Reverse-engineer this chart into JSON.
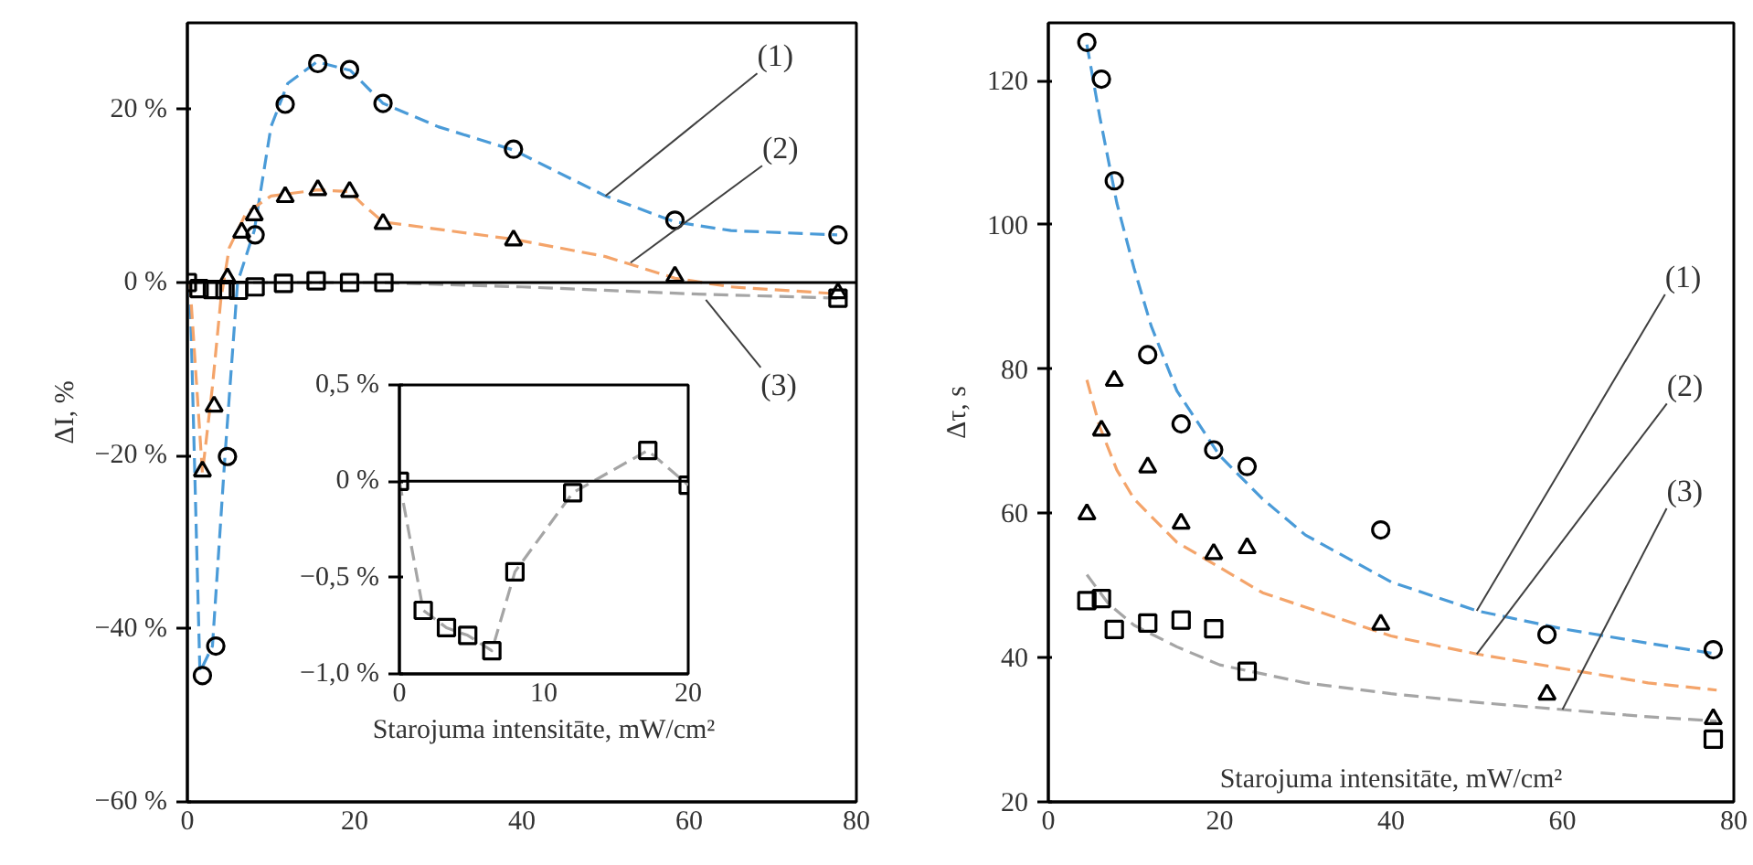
{
  "chart_data": [
    {
      "type": "scatter",
      "ylabel": "ΔI, %",
      "xlim": [
        0,
        80
      ],
      "xticks": [
        0,
        20,
        40,
        60,
        80
      ],
      "ylim": [
        -60,
        30
      ],
      "yticks": [
        {
          "value": -60,
          "label": "−60 %"
        },
        {
          "value": -40,
          "label": "−40 %"
        },
        {
          "value": -20,
          "label": "−20 %"
        },
        {
          "value": 0,
          "label": "0 %"
        },
        {
          "value": 20,
          "label": "20 %"
        }
      ],
      "grid": false,
      "ref_lines": [
        {
          "axis": "y",
          "value": 0,
          "color": "#000000"
        }
      ],
      "series": [
        {
          "type": "line",
          "color": "#4a9bd8",
          "line_style": "dashed",
          "x": [
            0.3,
            1.5,
            3,
            4.5,
            6,
            8,
            10,
            12,
            15.5,
            19.5,
            23.4,
            30,
            39,
            50,
            58.3,
            65,
            77.7
          ],
          "values": [
            0,
            -45,
            -42,
            -20,
            0,
            6,
            18,
            23,
            25.5,
            24.5,
            20.7,
            18,
            15.3,
            10,
            7,
            6,
            5.5
          ]
        },
        {
          "type": "line",
          "color": "#f4a46a",
          "line_style": "dashed",
          "x": [
            0.3,
            1.8,
            3,
            4,
            5,
            7,
            10,
            15.6,
            19.4,
            21,
            23.4,
            39,
            50,
            58.3,
            65,
            77.7
          ],
          "values": [
            0,
            -22,
            -12,
            -2,
            4,
            8,
            10,
            10.7,
            10.5,
            9,
            7,
            5,
            3,
            0.5,
            -0.5,
            -1.3
          ]
        },
        {
          "type": "line",
          "color": "#a5a5a5",
          "line_style": "dashed",
          "x": [
            0,
            23.4,
            40,
            60,
            77.7
          ],
          "values": [
            0,
            0,
            -0.5,
            -1.3,
            -1.8
          ]
        },
        {
          "type": "scatter",
          "marker": "circle",
          "color": "#000000",
          "x": [
            1.8,
            3.4,
            4.8,
            8.1,
            11.7,
            15.6,
            19.4,
            23.4,
            39,
            58.3,
            77.8
          ],
          "values": [
            -45.4,
            -42,
            -20.1,
            5.5,
            20.6,
            25.3,
            24.6,
            20.7,
            15.4,
            7.2,
            5.5
          ]
        },
        {
          "type": "scatter",
          "marker": "triangle",
          "color": "#000000",
          "x": [
            1.8,
            3.2,
            4.8,
            6.5,
            8,
            11.7,
            15.6,
            19.4,
            23.4,
            39,
            58.3,
            77.8
          ],
          "values": [
            -21.8,
            -14.3,
            0.5,
            5.8,
            7.8,
            9.9,
            10.7,
            10.5,
            6.8,
            4.9,
            0.7,
            -1.2
          ]
        },
        {
          "type": "scatter",
          "marker": "square",
          "color": "#000000",
          "x": [
            0,
            1.4,
            3,
            4.5,
            6.1,
            8.1,
            11.5,
            15.4,
            19.4,
            23.5,
            77.8
          ],
          "values": [
            0,
            -0.7,
            -0.8,
            -0.8,
            -0.9,
            -0.5,
            -0.1,
            0.2,
            0,
            0,
            -1.8
          ]
        }
      ],
      "annotations": [
        {
          "text": "(1)",
          "x": 50,
          "y": 10
        },
        {
          "text": "(2)",
          "x": 53,
          "y": 2.3
        },
        {
          "text": "(3)",
          "x": 62,
          "y": -2
        }
      ]
    },
    {
      "type": "scatter",
      "xlabel": "Starojuma intensitāte, mW/cm²",
      "xlim": [
        0,
        20
      ],
      "xticks": [
        0,
        10,
        20
      ],
      "ylim": [
        -1.0,
        0.5
      ],
      "yticks": [
        {
          "value": -1.0,
          "label": "−1,0 %"
        },
        {
          "value": -0.5,
          "label": "−0,5 %"
        },
        {
          "value": 0,
          "label": "0 %"
        },
        {
          "value": 0.5,
          "label": "0,5 %"
        }
      ],
      "grid": false,
      "ref_lines": [
        {
          "axis": "y",
          "value": 0,
          "color": "#000000"
        }
      ],
      "series": [
        {
          "type": "line",
          "color": "#a5a5a5",
          "line_style": "dashed",
          "x": [
            0,
            1.65,
            3.26,
            4.73,
            6.4,
            8,
            12,
            17.2,
            20
          ],
          "values": [
            0,
            -0.67,
            -0.76,
            -0.8,
            -0.88,
            -0.47,
            -0.06,
            0.16,
            -0.02
          ]
        },
        {
          "type": "scatter",
          "marker": "square",
          "color": "#000000",
          "x": [
            0,
            1.65,
            3.26,
            4.73,
            6.4,
            8,
            12,
            17.2,
            20
          ],
          "values": [
            0,
            -0.67,
            -0.76,
            -0.8,
            -0.88,
            -0.47,
            -0.06,
            0.16,
            -0.02
          ]
        }
      ]
    },
    {
      "type": "scatter",
      "ylabel": "Δτ, s",
      "xlabel": "Starojuma intensitāte, mW/cm²",
      "xlim": [
        0,
        80
      ],
      "xticks": [
        0,
        20,
        40,
        60,
        80
      ],
      "ylim": [
        20,
        128
      ],
      "yticks": [
        20,
        40,
        60,
        80,
        100,
        120
      ],
      "grid": false,
      "series": [
        {
          "type": "line",
          "color": "#4a9bd8",
          "line_style": "dashed",
          "x": [
            4.5,
            6,
            8,
            10,
            12,
            15,
            20,
            25,
            30,
            40,
            50,
            60,
            70,
            78
          ],
          "values": [
            125,
            115,
            103,
            94,
            86,
            77,
            68,
            62,
            57,
            50.5,
            46.5,
            44,
            42,
            40.5
          ]
        },
        {
          "type": "line",
          "color": "#f4a46a",
          "line_style": "dashed",
          "x": [
            4.5,
            6,
            8,
            10,
            15,
            20,
            25,
            30,
            40,
            50,
            60,
            70,
            78
          ],
          "values": [
            78.5,
            72,
            66,
            62,
            56,
            52.5,
            49,
            47,
            43,
            40.5,
            38.5,
            36.5,
            35.5
          ]
        },
        {
          "type": "line",
          "color": "#a5a5a5",
          "line_style": "dashed",
          "x": [
            4.5,
            7,
            10,
            15,
            20,
            30,
            40,
            50,
            60,
            70,
            78
          ],
          "values": [
            51.5,
            47.5,
            44.5,
            41.5,
            39,
            36.5,
            35,
            33.8,
            32.8,
            31.8,
            31.2
          ]
        },
        {
          "type": "scatter",
          "marker": "circle",
          "color": "#000000",
          "x": [
            4.5,
            6.2,
            7.7,
            11.6,
            15.5,
            19.3,
            23.2,
            38.8,
            58.2,
            77.6
          ],
          "values": [
            125.3,
            120.2,
            106.1,
            82,
            72.4,
            68.8,
            66.5,
            57.7,
            43.2,
            41.1
          ]
        },
        {
          "type": "scatter",
          "marker": "triangle",
          "color": "#000000",
          "x": [
            4.5,
            6.2,
            7.7,
            11.6,
            15.5,
            19.3,
            23.2,
            38.8,
            58.2,
            77.6
          ],
          "values": [
            59.9,
            71.5,
            78.4,
            66.4,
            58.6,
            54.4,
            55.2,
            44.6,
            34.9,
            31.5
          ]
        },
        {
          "type": "scatter",
          "marker": "square",
          "color": "#000000",
          "x": [
            4.5,
            6.2,
            7.7,
            11.6,
            15.5,
            19.3,
            23.2,
            77.6
          ],
          "values": [
            47.9,
            48.2,
            43.9,
            44.8,
            45.2,
            44,
            38.1,
            28.7
          ]
        }
      ],
      "annotations": [
        {
          "text": "(1)",
          "x": 50,
          "y": 46.5
        },
        {
          "text": "(2)",
          "x": 50,
          "y": 40.5
        },
        {
          "text": "(3)",
          "x": 60,
          "y": 32.8
        }
      ]
    }
  ]
}
